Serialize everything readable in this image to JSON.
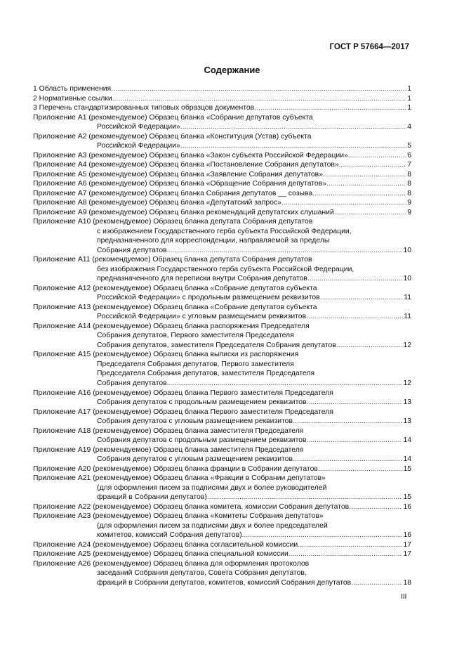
{
  "header": {
    "standard": "ГОСТ Р 57664—2017",
    "title": "Содержание"
  },
  "toc": [
    {
      "lines": [
        "1 Область применения"
      ],
      "page": "1"
    },
    {
      "lines": [
        "2 Нормативные ссылки"
      ],
      "page": "1"
    },
    {
      "lines": [
        "3 Перечень стандартизированных типовых образцов документов "
      ],
      "page": "1"
    },
    {
      "lines": [
        "Приложение А1 (рекомендуемое) Образец бланка «Собрание депутатов субъекта",
        "Российской Федерации»"
      ],
      "page": "4"
    },
    {
      "lines": [
        "Приложение А2 (рекомендуемое) Образец бланка «Конституция (Устав) субъекта",
        "Российской Федерации» "
      ],
      "page": "5"
    },
    {
      "lines": [
        "Приложение А3 (рекомендуемое) Образец бланка «Закон субъекта Российской Федерации» "
      ],
      "page": "6"
    },
    {
      "lines": [
        "Приложение А4 (рекомендуемое) Образец бланка «Постановление Собрания депутатов»"
      ],
      "page": "7"
    },
    {
      "lines": [
        "Приложение А5 (рекомендуемое) Образец бланка «Заявление Собрания депутатов» "
      ],
      "page": "8"
    },
    {
      "lines": [
        "Приложение А6 (рекомендуемое) Образец бланка «Обращение Собрания депутатов»"
      ],
      "page": "8"
    },
    {
      "lines": [
        "Приложение А7 (рекомендуемое) Образец бланка Собрания депутатов __ созыва"
      ],
      "page": "8"
    },
    {
      "lines": [
        "Приложение А8 (рекомендуемое) Образец бланка «Депутатский запрос»"
      ],
      "page": "9"
    },
    {
      "lines": [
        "Приложение А9 (рекомендуемое) Образец бланка рекомендаций депутатских слушаний"
      ],
      "page": "9"
    },
    {
      "lines": [
        "Приложение А10 (рекомендуемое) Образец бланка депутата Собрания депутатов",
        "с изображением Государственного герба субъекта Российской Федерации,",
        "предназначенного для корреспонденции, направляемой за пределы",
        "Собрания депутатов "
      ],
      "page": "10"
    },
    {
      "lines": [
        "Приложение А11 (рекомендуемое) Образец бланка депутата Собрания депутатов",
        "без изображения Государственного герба субъекта Российской Федерации,",
        "предназначенного для переписки внутри Собрания депутатов "
      ],
      "page": "10"
    },
    {
      "lines": [
        "Приложение А12 (рекомендуемое) Образец бланка «Собрание депутатов субъекта",
        "Российской Федерации»  с продольным размещением реквизитов"
      ],
      "page": "11"
    },
    {
      "lines": [
        "Приложение А13 (рекомендуемое) Образец бланка «Собрание депутатов субъекта",
        "Российской Федерации»  с угловым размещением реквизитов"
      ],
      "page": "11"
    },
    {
      "lines": [
        "Приложение А14 (рекомендуемое) Образец бланка распоряжения Председателя",
        "Собрания депутатов, Первого заместителя Председателя",
        "Собрания депутатов, заместителя Председателя Собрания депутатов"
      ],
      "page": "12"
    },
    {
      "lines": [
        "Приложение А15 (рекомендуемое) Образец бланка выписки из распоряжения",
        "Председателя Собрания депутатов, Первого заместителя",
        "Председателя Собрания депутатов, заместителя Председателя",
        "Собрания депутатов "
      ],
      "page": "12"
    },
    {
      "lines": [
        "Приложение А16 (рекомендуемое) Образец бланка Первого заместителя Председателя",
        "Собрания депутатов с продольным размещением реквизитов"
      ],
      "page": "13"
    },
    {
      "lines": [
        "Приложение А17 (рекомендуемое) Образец бланка Первого заместителя Председателя",
        "Собрания депутатов с угловым размещением реквизитов "
      ],
      "page": "13"
    },
    {
      "lines": [
        "Приложение А18 (рекомендуемое) Образец бланка заместителя Председателя",
        "Собрания депутатов с продольным размещением реквизитов"
      ],
      "page": "14"
    },
    {
      "lines": [
        "Приложение А19 (рекомендуемое) Образец бланка заместителя Председателя",
        "Собрания депутатов с угловым размещением реквизитов "
      ],
      "page": "14"
    },
    {
      "lines": [
        "Приложение А20 (рекомендуемое) Образец бланка фракции в Собрании депутатов"
      ],
      "page": "15"
    },
    {
      "lines": [
        "Приложение А21 (рекомендуемое) Образец бланка «Фракции в Собрании депутатов»",
        "(для оформления писем за подписями двух и более руководителей",
        "фракций в Собрании депутатов)"
      ],
      "page": "15"
    },
    {
      "lines": [
        "Приложение А22 (рекомендуемое) Образец бланка комитета, комиссии Собрания депутатов"
      ],
      "page": "16"
    },
    {
      "lines": [
        "Приложение А23 (рекомендуемое) Образец бланка «Комитеты Собрания депутатов»",
        "(для оформления писем за подписями двух и более председателей",
        "комитетов, комиссий Собрания депутатов) "
      ],
      "page": "16"
    },
    {
      "lines": [
        "Приложение А24 (рекомендуемое) Образец бланка согласительной комиссии"
      ],
      "page": "17"
    },
    {
      "lines": [
        "Приложение А25 (рекомендуемое) Образец бланка специальной комиссии"
      ],
      "page": "17"
    },
    {
      "lines": [
        "Приложение А26 (рекомендуемое) Образец бланка для оформления протоколов",
        "заседаний Собрания депутатов, Совета Собрания депутатов,",
        "фракций в Собрании депутатов, комитетов, комиссий Собрания депутатов "
      ],
      "page": "18"
    }
  ],
  "footer": {
    "page_number": "III"
  }
}
